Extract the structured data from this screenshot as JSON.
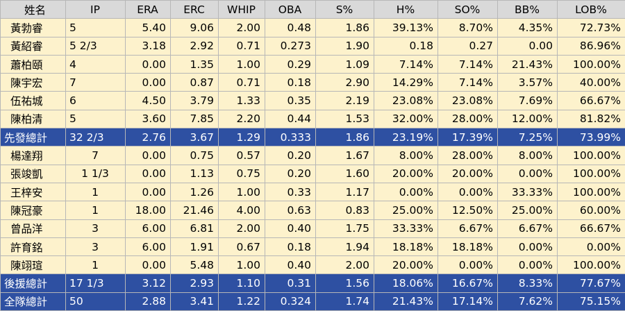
{
  "headers": [
    "姓名",
    "IP",
    "ERA",
    "ERC",
    "WHIP",
    "OBA",
    "S%",
    "H%",
    "SO%",
    "BB%",
    "LOB%"
  ],
  "rows": [
    {
      "type": "starter",
      "cells": [
        "黃勃睿",
        "5",
        "5.40",
        "9.06",
        "2.00",
        "0.48",
        "1.86",
        "39.13%",
        "8.70%",
        "4.35%",
        "72.73%"
      ]
    },
    {
      "type": "starter",
      "cells": [
        "黃紹睿",
        "5 2/3",
        "3.18",
        "2.92",
        "0.71",
        "0.273",
        "1.90",
        "0.18",
        "0.27",
        "0.00",
        "86.96%"
      ]
    },
    {
      "type": "starter",
      "cells": [
        "蕭柏頤",
        "4",
        "0.00",
        "1.35",
        "1.00",
        "0.29",
        "1.09",
        "7.14%",
        "7.14%",
        "21.43%",
        "100.00%"
      ]
    },
    {
      "type": "starter",
      "cells": [
        "陳宇宏",
        "7",
        "0.00",
        "0.87",
        "0.71",
        "0.18",
        "2.90",
        "14.29%",
        "7.14%",
        "3.57%",
        "40.00%"
      ]
    },
    {
      "type": "starter",
      "cells": [
        "伍祐城",
        "6",
        "4.50",
        "3.79",
        "1.33",
        "0.35",
        "2.19",
        "23.08%",
        "23.08%",
        "7.69%",
        "66.67%"
      ]
    },
    {
      "type": "starter",
      "cells": [
        "陳柏清",
        "5",
        "3.60",
        "7.85",
        "2.20",
        "0.44",
        "1.53",
        "32.00%",
        "28.00%",
        "12.00%",
        "81.82%"
      ]
    },
    {
      "type": "total",
      "cells": [
        "先發總計",
        "32 2/3",
        "2.76",
        "3.67",
        "1.29",
        "0.333",
        "1.86",
        "23.19%",
        "17.39%",
        "7.25%",
        "73.99%"
      ]
    },
    {
      "type": "reliever",
      "cells": [
        "楊達翔",
        "7",
        "0.00",
        "0.75",
        "0.57",
        "0.20",
        "1.67",
        "8.00%",
        "28.00%",
        "8.00%",
        "100.00%"
      ]
    },
    {
      "type": "reliever",
      "cells": [
        "張竣凱",
        "1 1/3",
        "0.00",
        "1.13",
        "0.75",
        "0.20",
        "1.60",
        "20.00%",
        "20.00%",
        "0.00%",
        "100.00%"
      ]
    },
    {
      "type": "reliever",
      "cells": [
        "王梓安",
        "1",
        "0.00",
        "1.26",
        "1.00",
        "0.33",
        "1.17",
        "0.00%",
        "0.00%",
        "33.33%",
        "100.00%"
      ]
    },
    {
      "type": "reliever",
      "cells": [
        "陳冠豪",
        "1",
        "18.00",
        "21.46",
        "4.00",
        "0.63",
        "0.83",
        "25.00%",
        "12.50%",
        "25.00%",
        "60.00%"
      ]
    },
    {
      "type": "reliever",
      "cells": [
        "曾品洋",
        "3",
        "6.00",
        "6.81",
        "2.00",
        "0.40",
        "1.75",
        "33.33%",
        "6.67%",
        "6.67%",
        "66.67%"
      ]
    },
    {
      "type": "reliever",
      "cells": [
        "許育銘",
        "3",
        "6.00",
        "1.91",
        "0.67",
        "0.18",
        "1.94",
        "18.18%",
        "18.18%",
        "0.00%",
        "0.00%"
      ]
    },
    {
      "type": "reliever",
      "cells": [
        "陳翊瑄",
        "1",
        "0.00",
        "5.48",
        "1.00",
        "0.40",
        "2.00",
        "20.00%",
        "0.00%",
        "0.00%",
        "100.00%"
      ]
    },
    {
      "type": "total",
      "cells": [
        "後援總計",
        "17 1/3",
        "3.12",
        "2.93",
        "1.10",
        "0.31",
        "1.56",
        "18.06%",
        "16.67%",
        "8.33%",
        "77.67%"
      ]
    },
    {
      "type": "total",
      "cells": [
        "全隊總計",
        "50",
        "2.88",
        "3.41",
        "1.22",
        "0.324",
        "1.74",
        "21.43%",
        "17.14%",
        "7.62%",
        "75.15%"
      ]
    }
  ]
}
